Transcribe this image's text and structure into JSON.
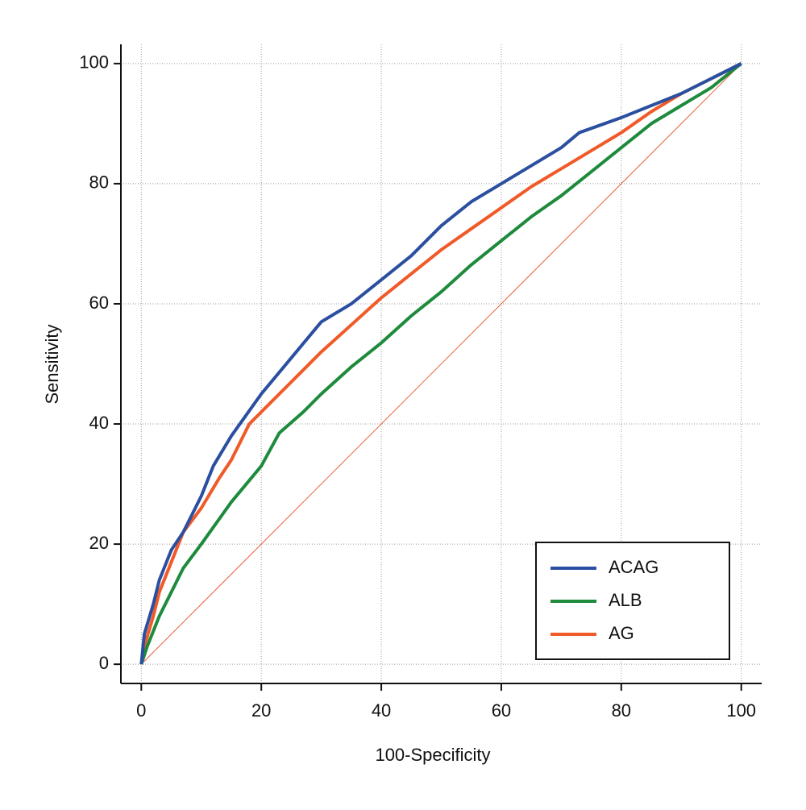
{
  "chart_data": {
    "type": "line",
    "xlabel": "100-Specificity",
    "ylabel": "Sensitivity",
    "xlim": [
      -3.4,
      103.4
    ],
    "ylim": [
      -3.2,
      103.2
    ],
    "xticks": [
      0,
      20,
      40,
      60,
      80,
      100
    ],
    "yticks": [
      0,
      20,
      40,
      60,
      80,
      100
    ],
    "grid": true,
    "legend": "lower right",
    "reference_line": {
      "color": "#e8603c",
      "x": [
        0,
        100
      ],
      "y": [
        0,
        100
      ]
    },
    "series": [
      {
        "name": "ACAG",
        "color": "#2b4fa0",
        "x": [
          0,
          0.5,
          2,
          3,
          5,
          7,
          10,
          12,
          15,
          20,
          25,
          30,
          35,
          40,
          45,
          50,
          55,
          60,
          65,
          70,
          73,
          80,
          85,
          90,
          95,
          100
        ],
        "values": [
          0,
          5,
          10,
          14,
          19,
          22,
          28,
          33,
          38,
          45,
          51,
          57,
          60,
          64,
          68,
          73,
          77,
          80,
          83,
          86,
          88.5,
          91,
          93,
          95,
          97.5,
          100
        ]
      },
      {
        "name": "ALB",
        "color": "#1e8a3c",
        "x": [
          0,
          1,
          3,
          5,
          7,
          10,
          15,
          20,
          23,
          27,
          30,
          35,
          40,
          45,
          50,
          55,
          60,
          65,
          70,
          75,
          80,
          85,
          90,
          95,
          100
        ],
        "values": [
          0,
          3,
          8,
          12,
          16,
          20,
          27,
          33,
          38.5,
          42,
          45,
          49.5,
          53.5,
          58,
          62,
          66.5,
          70.5,
          74.5,
          78,
          82,
          86,
          90,
          93,
          96,
          100
        ]
      },
      {
        "name": "AG",
        "color": "#f05a28",
        "x": [
          0,
          0.5,
          2,
          3,
          5,
          7,
          10,
          13,
          15,
          18,
          20,
          25,
          30,
          35,
          40,
          45,
          50,
          55,
          60,
          65,
          70,
          75,
          80,
          85,
          90,
          95,
          100
        ],
        "values": [
          0,
          3,
          8,
          12,
          17,
          22,
          26,
          31,
          34,
          40,
          42,
          47,
          52,
          56.5,
          61,
          65,
          69,
          72.5,
          76,
          79.5,
          82.5,
          85.5,
          88.5,
          92,
          95,
          97.5,
          100
        ]
      }
    ]
  }
}
